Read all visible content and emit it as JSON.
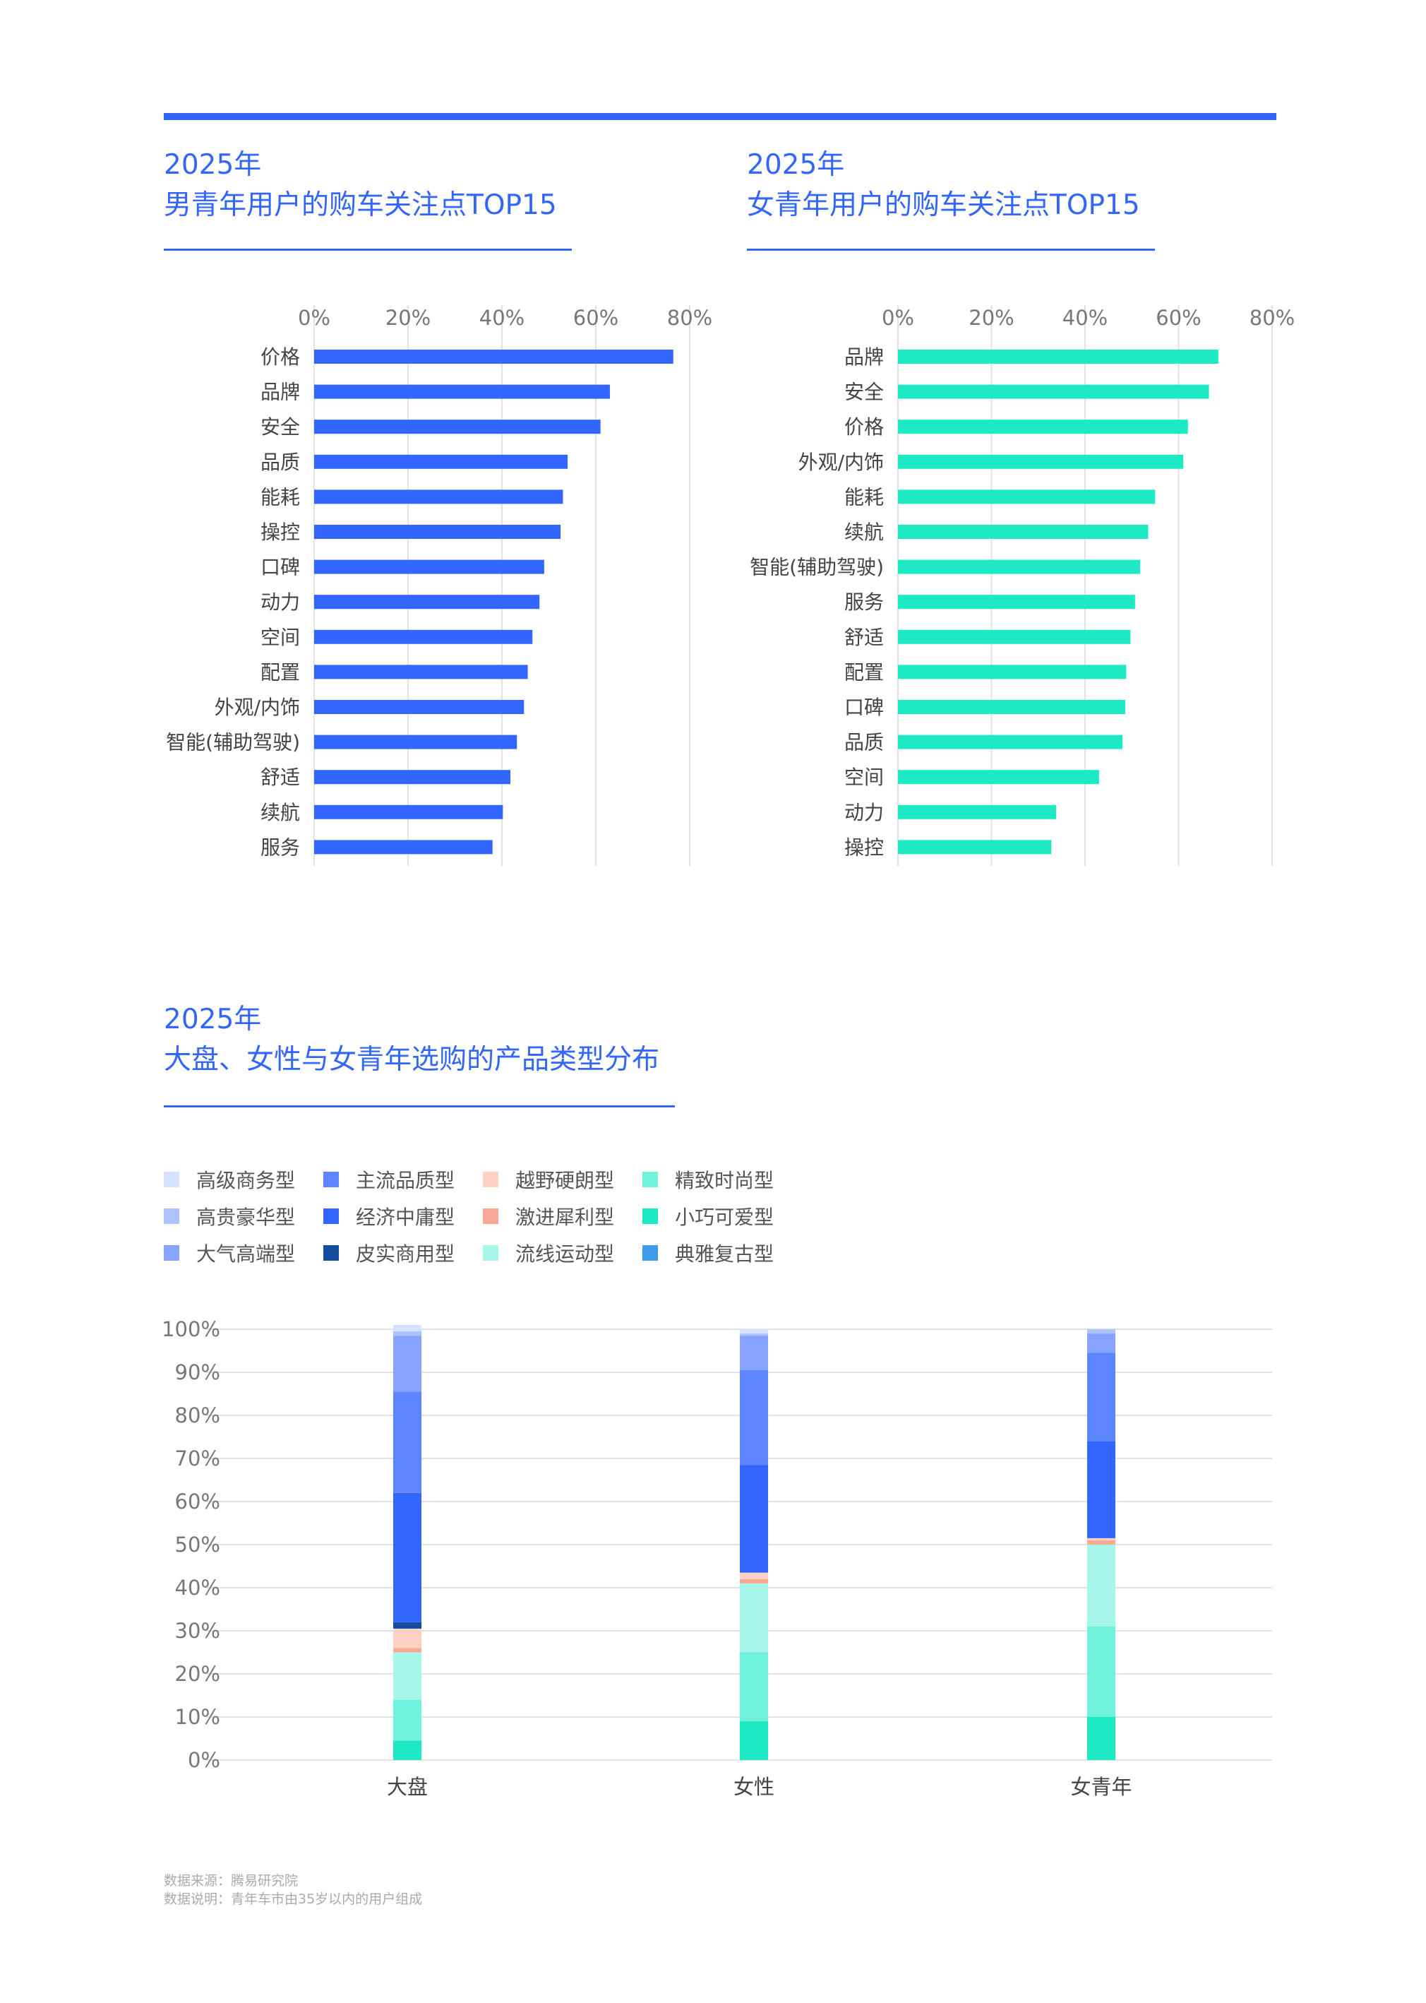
{
  "colors": {
    "accent": "#3366ff",
    "male_bar": "#3366ff",
    "female_bar": "#1de9c4"
  },
  "chart1": {
    "title_year": "2025年",
    "title_main": "男青年用户的购车关注点TOP15"
  },
  "chart2": {
    "title_year": "2025年",
    "title_main": "女青年用户的购车关注点TOP15"
  },
  "chart3": {
    "title_year": "2025年",
    "title_main": "大盘、女性与女青年选购的产品类型分布"
  },
  "legend": {
    "items": [
      {
        "label": "高级商务型",
        "color": "#d6e2ff"
      },
      {
        "label": "高贵豪华型",
        "color": "#aec2ff"
      },
      {
        "label": "大气高端型",
        "color": "#85a3ff"
      },
      {
        "label": "主流品质型",
        "color": "#5c85ff"
      },
      {
        "label": "经济中庸型",
        "color": "#3366ff"
      },
      {
        "label": "皮实商用型",
        "color": "#164c9e"
      },
      {
        "label": "越野硬朗型",
        "color": "#fdd1c4"
      },
      {
        "label": "激进犀利型",
        "color": "#f9a895"
      },
      {
        "label": "流线运动型",
        "color": "#a6f7ea"
      },
      {
        "label": "精致时尚型",
        "color": "#6ff2dc"
      },
      {
        "label": "小巧可爱型",
        "color": "#1de9c4"
      },
      {
        "label": "典雅复古型",
        "color": "#3d9be9"
      }
    ]
  },
  "footer": {
    "source": "数据来源：腾易研究院",
    "note": "数据说明：青年车市由35岁以内的用户组成"
  },
  "chart_data": [
    {
      "type": "bar",
      "orientation": "horizontal",
      "title": "男青年用户的购车关注点TOP15",
      "categories": [
        "价格",
        "品牌",
        "安全",
        "品质",
        "能耗",
        "操控",
        "口碑",
        "动力",
        "空间",
        "配置",
        "外观/内饰",
        "智能(辅助驾驶)",
        "舒适",
        "续航",
        "服务"
      ],
      "values": [
        76.5,
        63,
        61,
        54,
        53,
        52.5,
        49,
        48,
        46.5,
        45.5,
        44.7,
        43.2,
        41.8,
        40.2,
        38
      ],
      "unit": "%",
      "xlim": [
        0,
        80
      ],
      "xticks": [
        "0%",
        "20%",
        "40%",
        "60%",
        "80%"
      ],
      "grid": true
    },
    {
      "type": "bar",
      "orientation": "horizontal",
      "title": "女青年用户的购车关注点TOP15",
      "categories": [
        "品牌",
        "安全",
        "价格",
        "外观/内饰",
        "能耗",
        "续航",
        "智能(辅助驾驶)",
        "服务",
        "舒适",
        "配置",
        "口碑",
        "品质",
        "空间",
        "动力",
        "操控"
      ],
      "values": [
        68.5,
        66.5,
        62,
        61,
        55,
        53.5,
        51.8,
        50.7,
        49.7,
        48.8,
        48.6,
        48,
        43,
        33.8,
        32.8
      ],
      "unit": "%",
      "xlim": [
        0,
        80
      ],
      "xticks": [
        "0%",
        "20%",
        "40%",
        "60%",
        "80%"
      ],
      "grid": true
    },
    {
      "type": "bar",
      "stacked": true,
      "title": "大盘、女性与女青年选购的产品类型分布",
      "categories": [
        "大盘",
        "女性",
        "女青年"
      ],
      "ylim": [
        0,
        100
      ],
      "yticks": [
        "0%",
        "10%",
        "20%",
        "30%",
        "40%",
        "50%",
        "60%",
        "70%",
        "80%",
        "90%",
        "100%"
      ],
      "grid": true,
      "series": [
        {
          "name": "小巧可爱型",
          "values": [
            4.5,
            9,
            10
          ]
        },
        {
          "name": "精致时尚型",
          "values": [
            9.5,
            16,
            21
          ]
        },
        {
          "name": "流线运动型",
          "values": [
            11,
            16,
            19
          ]
        },
        {
          "name": "激进犀利型",
          "values": [
            1,
            1,
            1
          ]
        },
        {
          "name": "越野硬朗型",
          "values": [
            4.5,
            1.5,
            0.5
          ]
        },
        {
          "name": "皮实商用型",
          "values": [
            1.5,
            0,
            0
          ]
        },
        {
          "name": "经济中庸型",
          "values": [
            30,
            25,
            22.5
          ]
        },
        {
          "name": "主流品质型",
          "values": [
            23.5,
            22,
            20.5
          ]
        },
        {
          "name": "大气高端型",
          "values": [
            13,
            8,
            4.5
          ]
        },
        {
          "name": "高贵豪华型",
          "values": [
            1,
            0.5,
            1
          ]
        },
        {
          "name": "高级商务型",
          "values": [
            1.5,
            1,
            0
          ]
        }
      ]
    }
  ]
}
